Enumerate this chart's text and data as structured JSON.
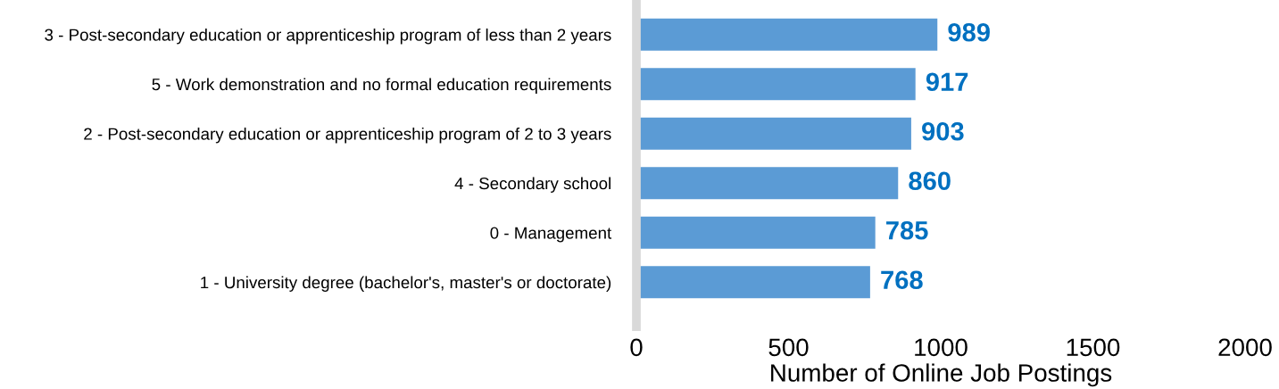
{
  "chart_data": {
    "type": "bar",
    "orientation": "horizontal",
    "categories": [
      "3 - Post-secondary education or apprenticeship program of less than 2 years",
      "5 - Work demonstration and no formal education requirements",
      "2 - Post-secondary education or apprenticeship program of 2 to 3 years",
      "4 - Secondary school",
      "0 - Management",
      "1 - University degree (bachelor's, master's or doctorate)"
    ],
    "values": [
      989,
      917,
      903,
      860,
      785,
      768
    ],
    "color": "#5b9bd5",
    "xlabel": "Number of Online Job Postings",
    "xlim": [
      0,
      2000
    ],
    "xticks": [
      0,
      500,
      1000,
      1500,
      2000
    ],
    "data_labels": true,
    "grid": false,
    "legend": false
  }
}
